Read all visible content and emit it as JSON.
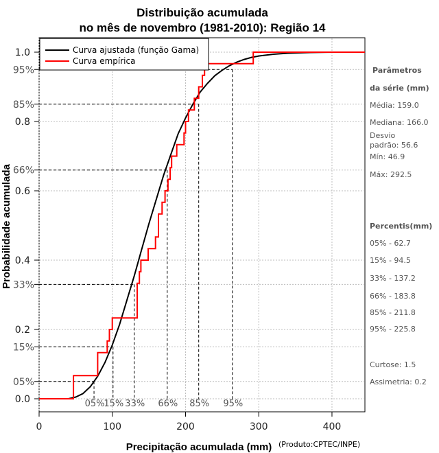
{
  "chart_data": {
    "type": "line",
    "title": [
      "Distribuição acumulada",
      "no mês de novembro (1981-2010): Região 14"
    ],
    "xlabel": "Precipitação acumulada (mm)",
    "ylabel": "Probabilidade acumulada",
    "credit": "(Produto:CPTEC/INPE)",
    "xlim": [
      0,
      445
    ],
    "ylim": [
      -0.02,
      1.03
    ],
    "x_ticks": [
      0,
      100,
      200,
      300,
      400
    ],
    "y_ticks": [
      {
        "value": 0.0,
        "label": "0.0"
      },
      {
        "value": 0.2,
        "label": "0.2"
      },
      {
        "value": 0.4,
        "label": "0.4"
      },
      {
        "value": 0.6,
        "label": "0.6"
      },
      {
        "value": 0.8,
        "label": "0.8"
      },
      {
        "value": 1.0,
        "label": "1.0"
      }
    ],
    "percentile_markers": [
      {
        "p": 0.05,
        "label": "05%",
        "x": 75
      },
      {
        "p": 0.15,
        "label": "15%",
        "x": 101
      },
      {
        "p": 0.33,
        "label": "33%",
        "x": 130
      },
      {
        "p": 0.66,
        "label": "66%",
        "x": 175
      },
      {
        "p": 0.85,
        "label": "85%",
        "x": 218
      },
      {
        "p": 0.95,
        "label": "95%",
        "x": 264
      }
    ],
    "grid": true,
    "legend_position": "top-left",
    "series": [
      {
        "name": "Curva ajustada (função Gama)",
        "color": "#000000",
        "kind": "fitted",
        "points": [
          [
            0,
            0
          ],
          [
            40,
            0.0
          ],
          [
            50,
            0.005
          ],
          [
            60,
            0.015
          ],
          [
            70,
            0.035
          ],
          [
            80,
            0.065
          ],
          [
            90,
            0.105
          ],
          [
            100,
            0.155
          ],
          [
            110,
            0.215
          ],
          [
            120,
            0.285
          ],
          [
            130,
            0.355
          ],
          [
            140,
            0.43
          ],
          [
            150,
            0.505
          ],
          [
            160,
            0.575
          ],
          [
            170,
            0.645
          ],
          [
            180,
            0.705
          ],
          [
            190,
            0.765
          ],
          [
            200,
            0.81
          ],
          [
            210,
            0.85
          ],
          [
            220,
            0.885
          ],
          [
            230,
            0.91
          ],
          [
            240,
            0.932
          ],
          [
            250,
            0.948
          ],
          [
            260,
            0.961
          ],
          [
            270,
            0.971
          ],
          [
            280,
            0.979
          ],
          [
            290,
            0.985
          ],
          [
            300,
            0.989
          ],
          [
            320,
            0.994
          ],
          [
            340,
            0.997
          ],
          [
            370,
            0.999
          ],
          [
            400,
            1.0
          ],
          [
            445,
            1.0
          ]
        ]
      },
      {
        "name": "Curva empírica",
        "color": "#ff0000",
        "kind": "empirical",
        "steps": [
          [
            0,
            0
          ],
          [
            46.9,
            0.0
          ],
          [
            46.9,
            0.067
          ],
          [
            80,
            0.067
          ],
          [
            80,
            0.133
          ],
          [
            93,
            0.133
          ],
          [
            93,
            0.167
          ],
          [
            96,
            0.167
          ],
          [
            96,
            0.2
          ],
          [
            100,
            0.2
          ],
          [
            100,
            0.233
          ],
          [
            134,
            0.233
          ],
          [
            134,
            0.333
          ],
          [
            137,
            0.333
          ],
          [
            137,
            0.367
          ],
          [
            139,
            0.367
          ],
          [
            139,
            0.4
          ],
          [
            149,
            0.4
          ],
          [
            149,
            0.433
          ],
          [
            159,
            0.433
          ],
          [
            159,
            0.467
          ],
          [
            163,
            0.467
          ],
          [
            163,
            0.533
          ],
          [
            168,
            0.533
          ],
          [
            168,
            0.567
          ],
          [
            172,
            0.567
          ],
          [
            172,
            0.6
          ],
          [
            176,
            0.6
          ],
          [
            176,
            0.633
          ],
          [
            179,
            0.633
          ],
          [
            179,
            0.667
          ],
          [
            181,
            0.667
          ],
          [
            181,
            0.7
          ],
          [
            188,
            0.7
          ],
          [
            188,
            0.733
          ],
          [
            198,
            0.733
          ],
          [
            198,
            0.767
          ],
          [
            200,
            0.767
          ],
          [
            200,
            0.8
          ],
          [
            204,
            0.8
          ],
          [
            204,
            0.833
          ],
          [
            212,
            0.833
          ],
          [
            212,
            0.867
          ],
          [
            218,
            0.867
          ],
          [
            218,
            0.9
          ],
          [
            223,
            0.9
          ],
          [
            223,
            0.933
          ],
          [
            226,
            0.933
          ],
          [
            226,
            0.967
          ],
          [
            292.5,
            0.967
          ],
          [
            292.5,
            1.0
          ],
          [
            445,
            1.0
          ]
        ]
      }
    ]
  },
  "side_panel": {
    "params_title": [
      "Parâmetros",
      "da série (mm)"
    ],
    "params": [
      "Média: 159.0",
      "Mediana: 166.0",
      "Desvio",
      "padrão: 56.6",
      "Mín: 46.9",
      "Máx: 292.5"
    ],
    "percentiles_title": "Percentis(mm)",
    "percentiles": [
      "05% - 62.7",
      "15% - 94.5",
      "33% - 137.2",
      "66% - 183.8",
      "85% - 211.8",
      "95% - 225.8"
    ],
    "extra": [
      "Curtose: 1.5",
      "Assimetria: 0.2"
    ]
  }
}
